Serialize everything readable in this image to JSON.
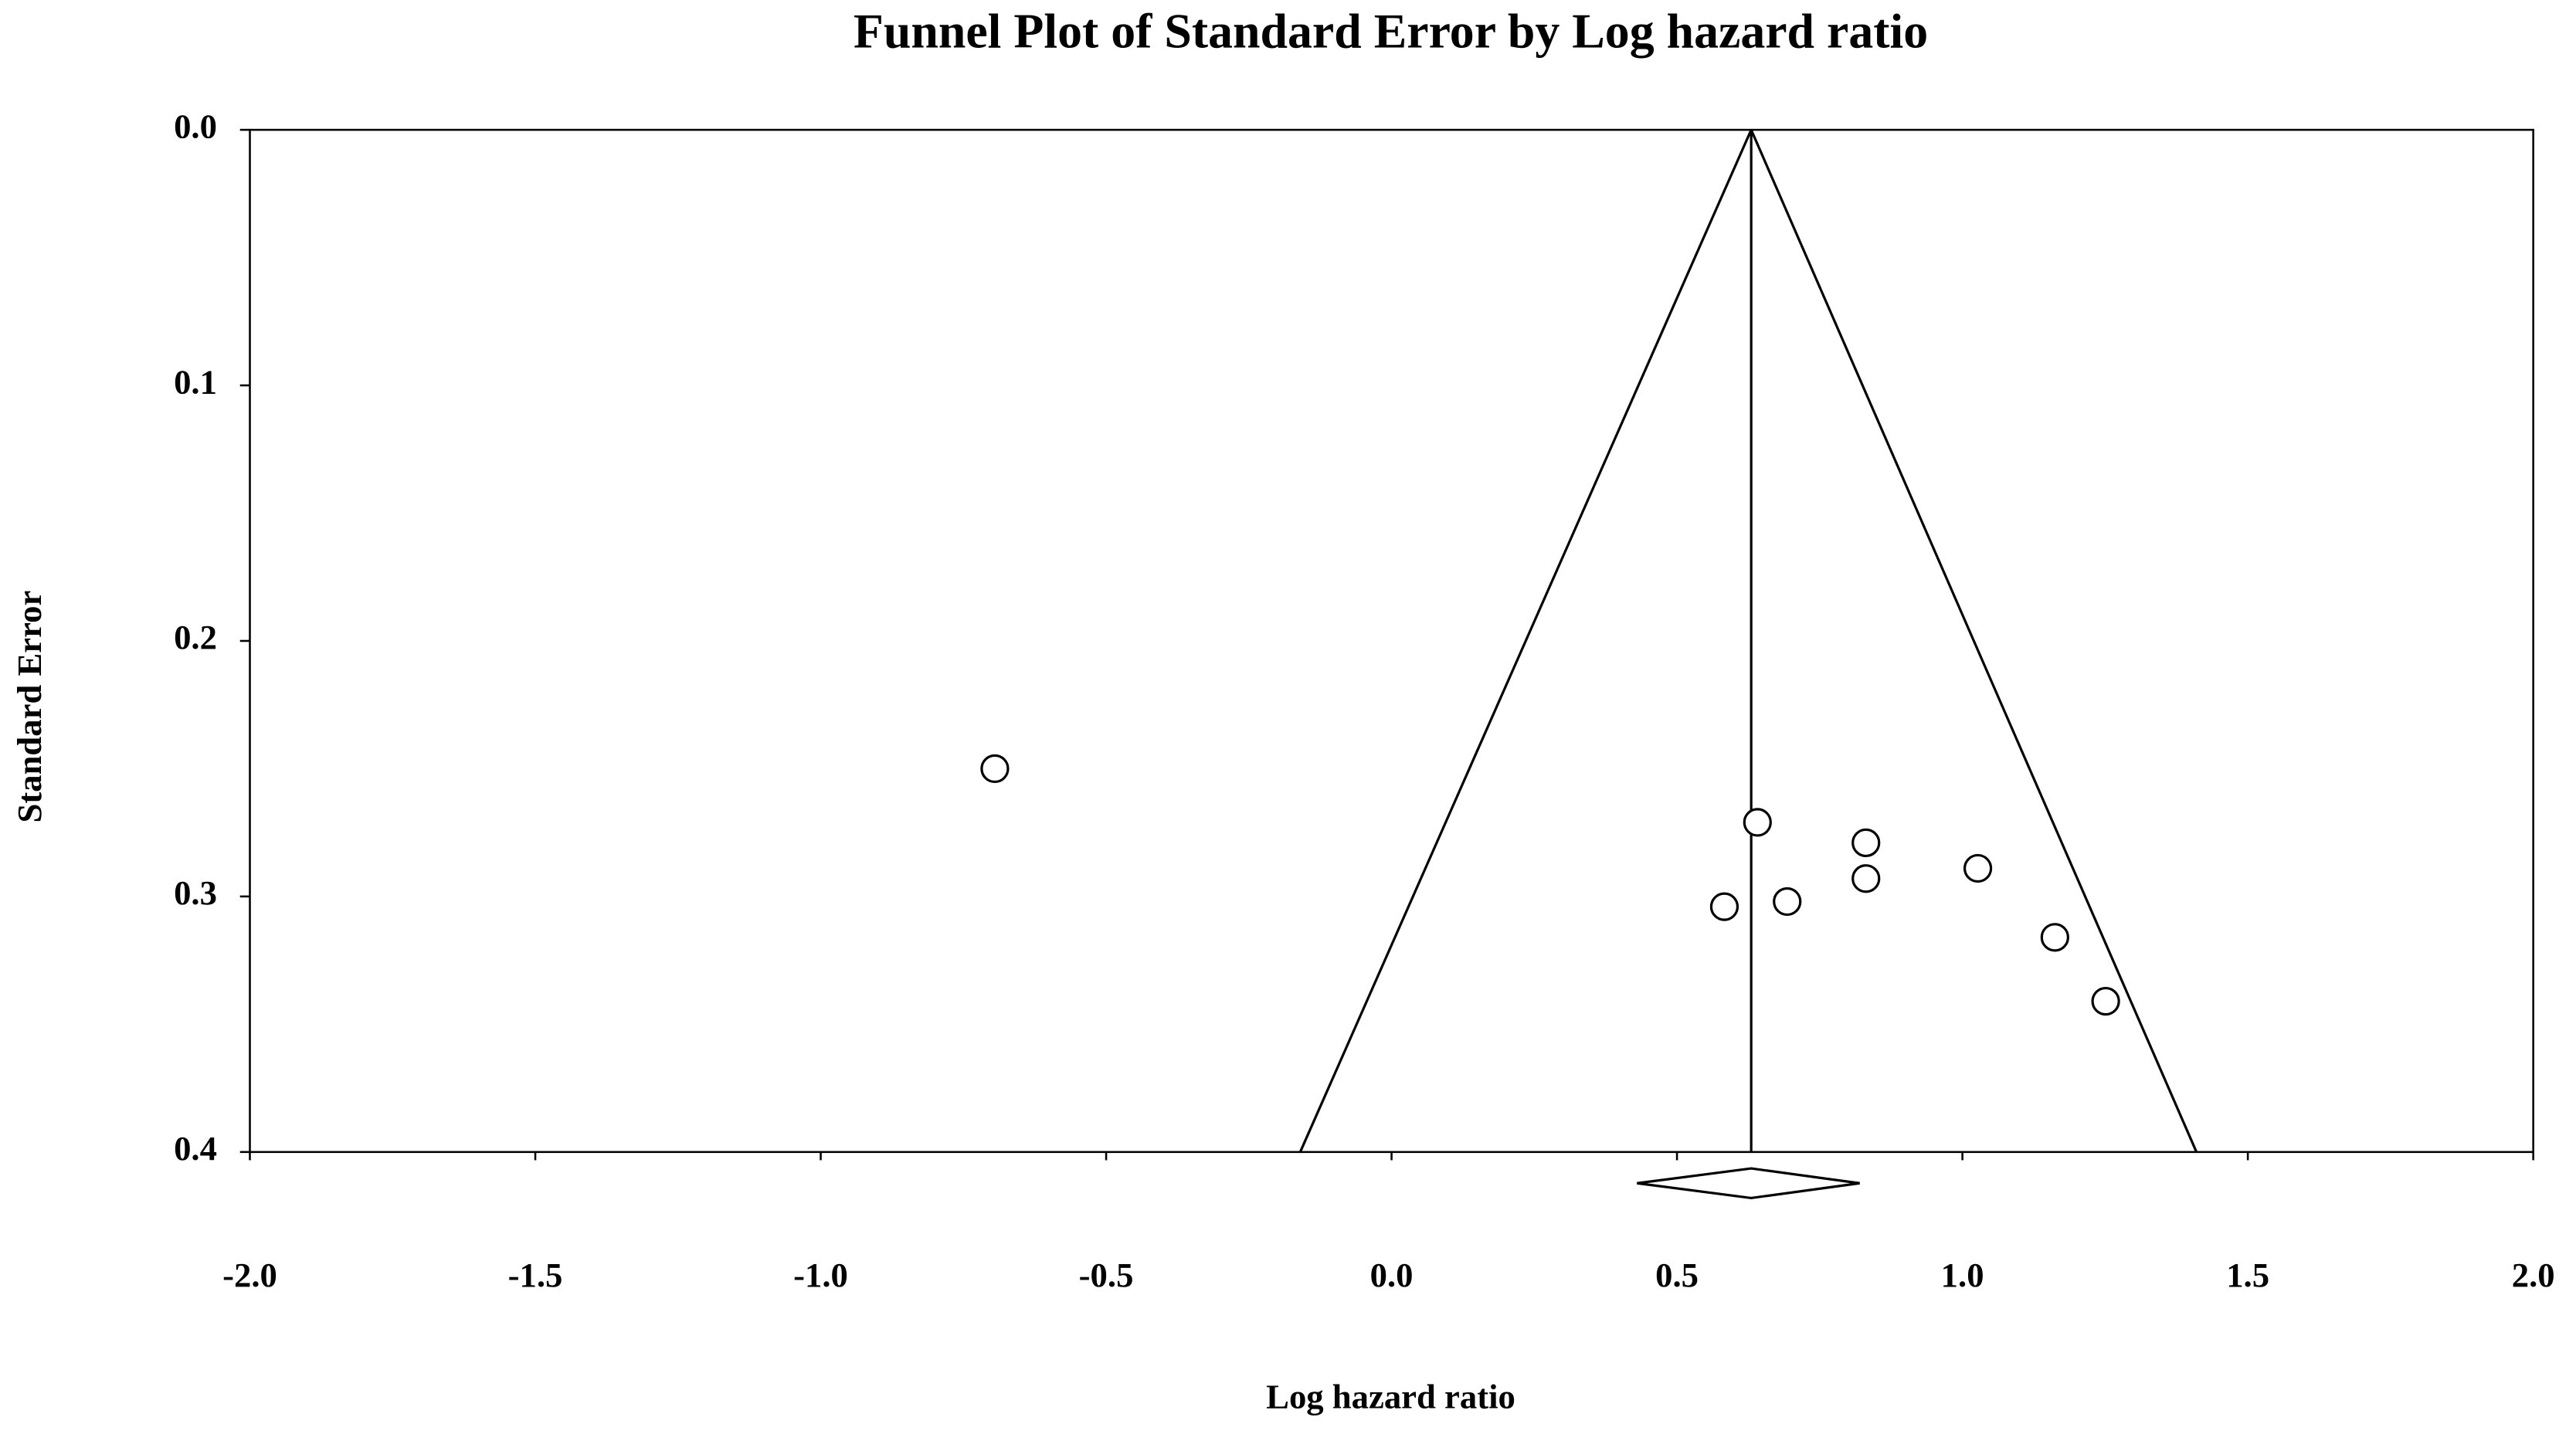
{
  "chart_data": {
    "type": "scatter",
    "title": "Funnel Plot of Standard Error by Log hazard ratio",
    "x_label": "Log hazard ratio",
    "y_label": "Standard Error",
    "x": [
      -0.695,
      0.641,
      0.831,
      0.831,
      1.027,
      0.583,
      0.693,
      1.162,
      1.251
    ],
    "values": [
      0.25,
      0.271,
      0.279,
      0.293,
      0.289,
      0.304,
      0.302,
      0.316,
      0.341
    ],
    "color": "#000000",
    "xlim": [
      -2,
      2
    ],
    "xticks": [
      {
        "value": -2,
        "label": "-2.0"
      },
      {
        "value": -1.5,
        "label": "-1.5"
      },
      {
        "value": -1,
        "label": "-1.0"
      },
      {
        "value": -0.5,
        "label": "-0.5"
      },
      {
        "value": 0,
        "label": "0.0"
      },
      0.5,
      {
        "value": 1,
        "label": "1.0"
      },
      1.5,
      {
        "value": 2,
        "label": "2.0"
      }
    ],
    "ylim": [
      0,
      0.4
    ],
    "y_inverted": true,
    "yticks": [
      {
        "value": 0,
        "label": "0.0"
      },
      0.1,
      0.2,
      0.3,
      0.4
    ],
    "funnel": {
      "center": 0.63,
      "base_se": 0.4,
      "left": -0.16,
      "right": 1.41
    },
    "summary": {
      "estimate": 0.63,
      "lower": 0.43,
      "upper": 0.82
    }
  }
}
